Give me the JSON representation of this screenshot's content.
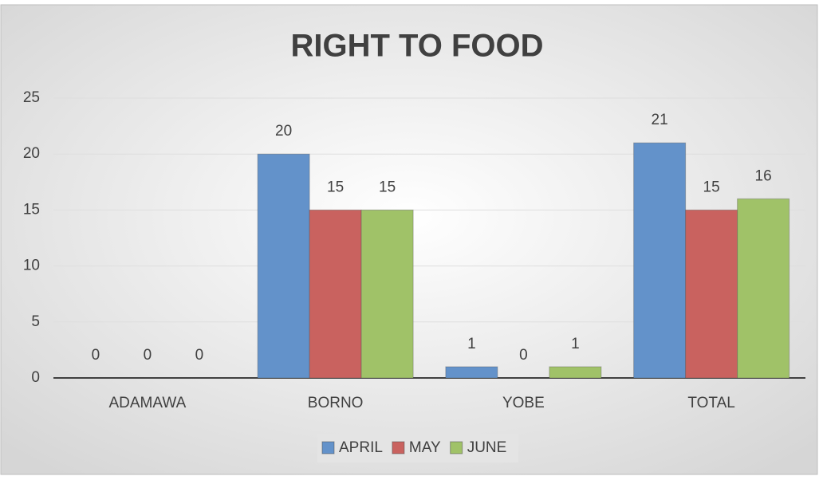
{
  "chart_data": {
    "type": "bar",
    "title": "RIGHT TO FOOD",
    "categories": [
      "ADAMAWA",
      "BORNO",
      "YOBE",
      "TOTAL"
    ],
    "series": [
      {
        "name": "APRIL",
        "color": "#6392ca",
        "values": [
          0,
          20,
          1,
          21
        ]
      },
      {
        "name": "MAY",
        "color": "#c9625f",
        "values": [
          0,
          15,
          0,
          15
        ]
      },
      {
        "name": "JUNE",
        "color": "#a0c268",
        "values": [
          0,
          15,
          1,
          16
        ]
      }
    ],
    "ylim": [
      0,
      25
    ],
    "yticks": [
      0,
      5,
      10,
      15,
      20,
      25
    ],
    "grid": true,
    "legend": "bottom"
  }
}
